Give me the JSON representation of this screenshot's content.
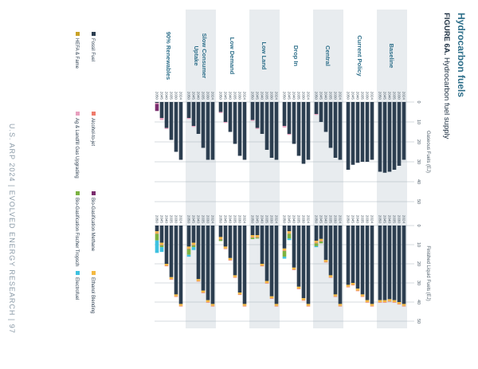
{
  "header": {
    "title": "Hydrocarbon fuels",
    "figure_label": "FIGURE 6A.",
    "figure_title": "Hydrocarbon fuel supply"
  },
  "footer": {
    "text": "U.S. ARP 2024 | EVOLVED ENERGY RESEARCH | 97"
  },
  "colors": {
    "fossil": "#2c3e50",
    "alcohol": "#ee7b6c",
    "bio_gas": "#7b2d6e",
    "ethanol": "#f4b942",
    "ag_landfill": "#e8a0bf",
    "bio_ft": "#7cb342",
    "electrofuel": "#3ec1e0",
    "band": "#e8ecef",
    "grid": "#9aa5ae"
  },
  "legend": [
    {
      "key": "fossil",
      "label": "Fossil Fuel"
    },
    {
      "key": "alcohol",
      "label": "Alcohol-to-jet"
    },
    {
      "key": "bio_gas",
      "label": "Bio-Gasification Methane"
    },
    {
      "key": "ethanol",
      "label": "Ethanol Blending"
    },
    {
      "key": "other",
      "label": "HEFA & Fame"
    },
    {
      "key": "ag_landfill",
      "label": "Ag & Landfill Gas Upgrading"
    },
    {
      "key": "bio_ft",
      "label": "Bio-Gasification Fischer Tropsch"
    },
    {
      "key": "electrofuel",
      "label": "Electrofuel"
    }
  ],
  "chart_data": [
    {
      "type": "bar",
      "orientation": "horizontal-stacked",
      "title": "Finished Liquid Fuels (EJ)",
      "xlim": [
        0,
        50
      ],
      "ticks": [
        0,
        10,
        20,
        30,
        40,
        50
      ],
      "grid": true,
      "years": [
        "2024",
        "2030",
        "2035",
        "2040",
        "2045",
        "2050"
      ],
      "scenarios": [
        {
          "name": "Baseline",
          "rows": [
            {
              "fossil": 41,
              "ethanol": 1.0,
              "alcohol": 0.3
            },
            {
              "fossil": 40,
              "ethanol": 1.0,
              "alcohol": 0.3
            },
            {
              "fossil": 39,
              "ethanol": 1.0,
              "alcohol": 0.3
            },
            {
              "fossil": 38.5,
              "ethanol": 1.0,
              "alcohol": 0.3
            },
            {
              "fossil": 39,
              "ethanol": 1.0,
              "alcohol": 0.3
            },
            {
              "fossil": 39,
              "ethanol": 1.0,
              "alcohol": 0.3
            }
          ]
        },
        {
          "name": "Current Policy",
          "rows": [
            {
              "fossil": 41,
              "ethanol": 1.0,
              "alcohol": 0.3
            },
            {
              "fossil": 39,
              "ethanol": 1.0,
              "alcohol": 0.3
            },
            {
              "fossil": 36,
              "ethanol": 1.0,
              "alcohol": 0.3
            },
            {
              "fossil": 33,
              "ethanol": 1.0,
              "alcohol": 0.3
            },
            {
              "fossil": 30,
              "ethanol": 1.0,
              "alcohol": 0.3
            },
            {
              "fossil": 31,
              "ethanol": 1.0,
              "alcohol": 0.3
            }
          ]
        },
        {
          "name": "Central",
          "rows": [
            {
              "fossil": 41,
              "ethanol": 1.0,
              "alcohol": 0.3
            },
            {
              "fossil": 36,
              "ethanol": 1.0,
              "alcohol": 0.3
            },
            {
              "fossil": 26,
              "ethanol": 1.0,
              "alcohol": 0.3
            },
            {
              "fossil": 18,
              "ethanol": 1.0,
              "alcohol": 0.3
            },
            {
              "fossil": 7,
              "ethanol": 1.0,
              "bio_ft": 1.0,
              "alcohol": 0.3
            },
            {
              "fossil": 8,
              "ethanol": 1.0,
              "bio_ft": 1.5,
              "electrofuel": 0.5,
              "alcohol": 0.3
            }
          ]
        },
        {
          "name": "Drop In",
          "rows": [
            {
              "fossil": 41,
              "ethanol": 1.0,
              "alcohol": 0.3
            },
            {
              "fossil": 38,
              "ethanol": 1.0,
              "alcohol": 0.3
            },
            {
              "fossil": 32,
              "ethanol": 1.0,
              "alcohol": 0.3
            },
            {
              "fossil": 22,
              "ethanol": 1.0,
              "alcohol": 0.3
            },
            {
              "fossil": 3,
              "ethanol": 1.0,
              "bio_ft": 2.5,
              "electrofuel": 0.8,
              "alcohol": 0.3
            },
            {
              "fossil": 12,
              "ethanol": 1.0,
              "bio_ft": 3.0,
              "electrofuel": 1.0,
              "alcohol": 0.3
            }
          ]
        },
        {
          "name": "Low Land",
          "rows": [
            {
              "fossil": 41,
              "ethanol": 1.0,
              "alcohol": 0.3
            },
            {
              "fossil": 37,
              "ethanol": 1.0,
              "alcohol": 0.3
            },
            {
              "fossil": 29,
              "ethanol": 1.0,
              "alcohol": 0.3
            },
            {
              "fossil": 20,
              "ethanol": 1.0,
              "alcohol": 0.3
            },
            {
              "fossil": 5,
              "ethanol": 1.0,
              "bio_ft": 0.5,
              "alcohol": 0.3
            },
            {
              "fossil": 5,
              "ethanol": 1.0,
              "bio_ft": 0.8,
              "alcohol": 0.3
            }
          ]
        },
        {
          "name": "Low Demand",
          "rows": [
            {
              "fossil": 41,
              "ethanol": 1.0,
              "alcohol": 0.3
            },
            {
              "fossil": 35,
              "ethanol": 1.0,
              "alcohol": 0.3
            },
            {
              "fossil": 26,
              "ethanol": 1.0,
              "alcohol": 0.3
            },
            {
              "fossil": 17,
              "ethanol": 1.0,
              "alcohol": 0.3
            },
            {
              "fossil": 11,
              "ethanol": 1.0,
              "alcohol": 0.3
            },
            {
              "fossil": 6,
              "ethanol": 1.0,
              "bio_ft": 0.8,
              "alcohol": 0.3
            }
          ]
        },
        {
          "name": "Slow Consumer Uptake",
          "rows": [
            {
              "fossil": 41,
              "ethanol": 1.0,
              "alcohol": 0.3
            },
            {
              "fossil": 39,
              "ethanol": 1.0,
              "alcohol": 0.3
            },
            {
              "fossil": 34,
              "ethanol": 1.0,
              "alcohol": 0.3
            },
            {
              "fossil": 28,
              "ethanol": 1.0,
              "alcohol": 0.3
            },
            {
              "fossil": 9,
              "ethanol": 1.0,
              "bio_ft": 1.0,
              "electrofuel": 1.5,
              "alcohol": 0.3
            },
            {
              "fossil": 11,
              "ethanol": 1.0,
              "bio_ft": 3.0,
              "electrofuel": 1.0,
              "alcohol": 0.3
            }
          ]
        },
        {
          "name": "90% Renewables",
          "rows": [
            {
              "fossil": 41,
              "ethanol": 1.0,
              "alcohol": 0.3
            },
            {
              "fossil": 36,
              "ethanol": 1.0,
              "alcohol": 0.3
            },
            {
              "fossil": 27,
              "ethanol": 1.0,
              "alcohol": 0.3
            },
            {
              "fossil": 20,
              "ethanol": 1.0,
              "alcohol": 0.3
            },
            {
              "fossil": 9,
              "ethanol": 1.0,
              "bio_ft": 1.0,
              "electrofuel": 2.5,
              "alcohol": 0.3
            },
            {
              "fossil": 3,
              "ethanol": 1.0,
              "bio_ft": 3.5,
              "electrofuel": 6.5,
              "alcohol": 0.3
            }
          ]
        }
      ]
    },
    {
      "type": "bar",
      "orientation": "horizontal-stacked",
      "title": "Gaseous Fuels (EJ)",
      "xlim": [
        0,
        50
      ],
      "ticks": [
        0,
        10,
        20,
        30,
        40,
        50
      ],
      "grid": true,
      "years": [
        "2024",
        "2030",
        "2035",
        "2040",
        "2045",
        "2050"
      ],
      "scenarios": [
        {
          "name": "Baseline",
          "rows": [
            {
              "fossil": 29
            },
            {
              "fossil": 32
            },
            {
              "fossil": 34
            },
            {
              "fossil": 35
            },
            {
              "fossil": 35.5
            },
            {
              "fossil": 35
            }
          ]
        },
        {
          "name": "Current Policy",
          "rows": [
            {
              "fossil": 29
            },
            {
              "fossil": 30
            },
            {
              "fossil": 30
            },
            {
              "fossil": 30.5
            },
            {
              "fossil": 31.5
            },
            {
              "fossil": 34
            }
          ]
        },
        {
          "name": "Central",
          "rows": [
            {
              "fossil": 29
            },
            {
              "fossil": 28
            },
            {
              "fossil": 23
            },
            {
              "fossil": 15
            },
            {
              "fossil": 10
            },
            {
              "fossil": 6,
              "ag_landfill": 0.5
            }
          ]
        },
        {
          "name": "Drop In",
          "rows": [
            {
              "fossil": 29
            },
            {
              "fossil": 31
            },
            {
              "fossil": 27
            },
            {
              "fossil": 21
            },
            {
              "fossil": 16,
              "ag_landfill": 0.5
            },
            {
              "fossil": 12,
              "ag_landfill": 0.8
            }
          ]
        },
        {
          "name": "Low Land",
          "rows": [
            {
              "fossil": 29
            },
            {
              "fossil": 28
            },
            {
              "fossil": 24
            },
            {
              "fossil": 16
            },
            {
              "fossil": 13,
              "ag_landfill": 0.5
            },
            {
              "fossil": 9,
              "ag_landfill": 0.5
            }
          ]
        },
        {
          "name": "Low Demand",
          "rows": [
            {
              "fossil": 29
            },
            {
              "fossil": 27
            },
            {
              "fossil": 21
            },
            {
              "fossil": 15
            },
            {
              "fossil": 10,
              "ag_landfill": 0.5
            },
            {
              "fossil": 5,
              "ag_landfill": 0.5
            }
          ]
        },
        {
          "name": "Slow Consumer Uptake",
          "rows": [
            {
              "fossil": 29
            },
            {
              "fossil": 29
            },
            {
              "fossil": 23
            },
            {
              "fossil": 16
            },
            {
              "fossil": 12,
              "ag_landfill": 0.5
            },
            {
              "fossil": 8,
              "ag_landfill": 0.5
            }
          ]
        },
        {
          "name": "90% Renewables",
          "rows": [
            {
              "fossil": 29
            },
            {
              "fossil": 25
            },
            {
              "fossil": 19
            },
            {
              "fossil": 13,
              "ag_landfill": 0.5
            },
            {
              "fossil": 8,
              "ag_landfill": 1.0
            },
            {
              "fossil": 0.5,
              "ag_landfill": 0.5,
              "bio_gas": 3.5
            }
          ]
        }
      ]
    }
  ]
}
